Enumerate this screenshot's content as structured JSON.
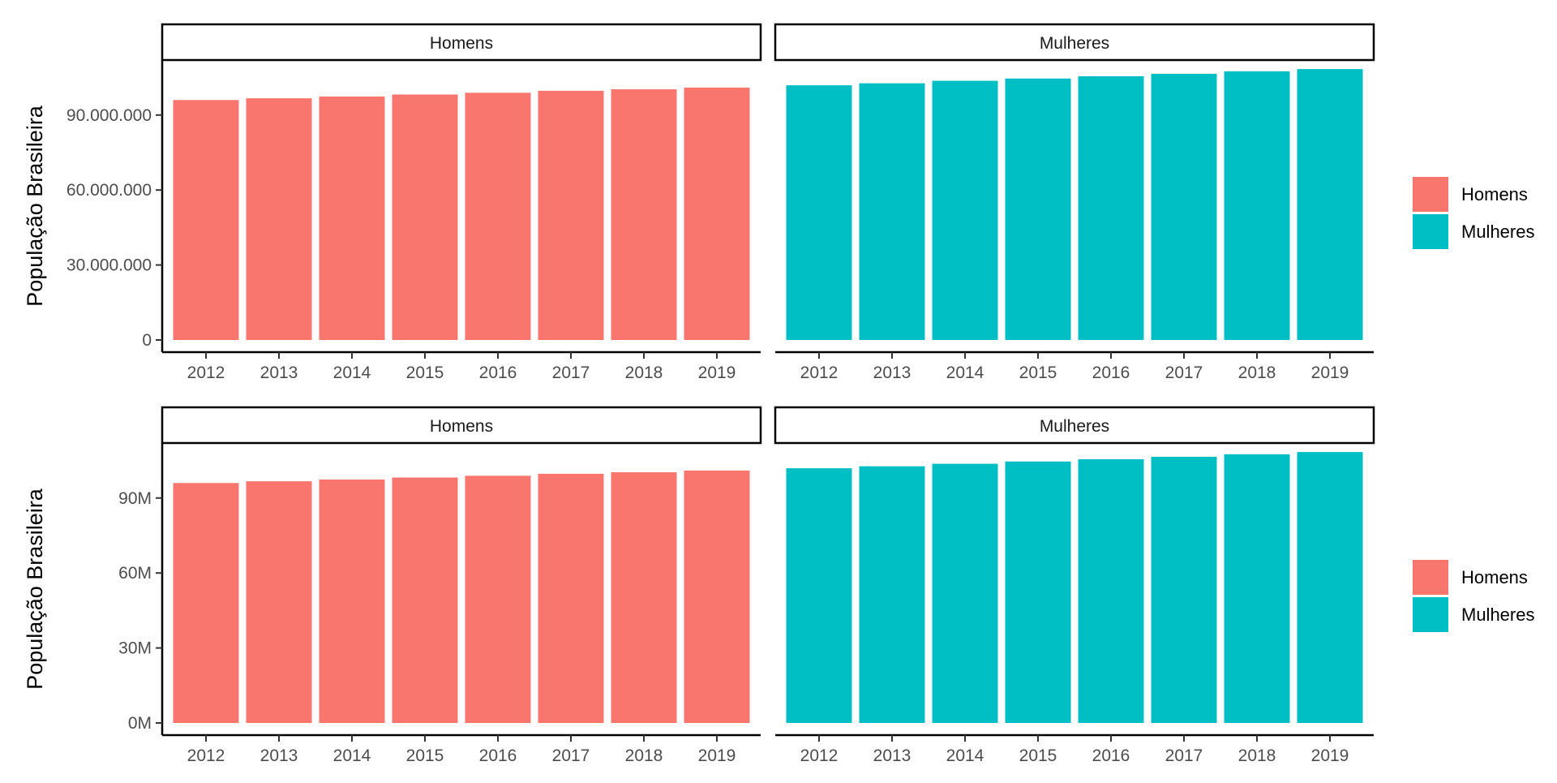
{
  "colors": {
    "homens": "#F8766D",
    "mulheres": "#00BFC4",
    "axis": "#000000",
    "tick_label": "#4D4D4D",
    "background": "#FFFFFF"
  },
  "chart_data": [
    {
      "type": "bar",
      "ylabel": "População Brasileira",
      "ylim": [
        0,
        112000000
      ],
      "yticks": [
        0,
        30000000,
        60000000,
        90000000
      ],
      "ytick_labels": [
        "0",
        "30.000.000",
        "60.000.000",
        "90.000.000"
      ],
      "categories": [
        "2012",
        "2013",
        "2014",
        "2015",
        "2016",
        "2017",
        "2018",
        "2019"
      ],
      "facets": [
        {
          "label": "Homens",
          "color_key": "homens",
          "values": [
            96000000,
            96700000,
            97400000,
            98200000,
            98900000,
            99700000,
            100300000,
            101000000
          ]
        },
        {
          "label": "Mulheres",
          "color_key": "mulheres",
          "values": [
            101900000,
            102700000,
            103700000,
            104600000,
            105500000,
            106500000,
            107500000,
            108400000
          ]
        }
      ],
      "legend": {
        "title": "",
        "entries": [
          {
            "label": "Homens",
            "color_key": "homens"
          },
          {
            "label": "Mulheres",
            "color_key": "mulheres"
          }
        ],
        "position": "right"
      }
    },
    {
      "type": "bar",
      "ylabel": "População Brasileira",
      "ylim": [
        0,
        112000000
      ],
      "yticks": [
        0,
        30000000,
        60000000,
        90000000
      ],
      "ytick_labels": [
        "0M",
        "30M",
        "60M",
        "90M"
      ],
      "categories": [
        "2012",
        "2013",
        "2014",
        "2015",
        "2016",
        "2017",
        "2018",
        "2019"
      ],
      "facets": [
        {
          "label": "Homens",
          "color_key": "homens",
          "values": [
            96000000,
            96700000,
            97400000,
            98200000,
            98900000,
            99700000,
            100300000,
            101000000
          ]
        },
        {
          "label": "Mulheres",
          "color_key": "mulheres",
          "values": [
            101900000,
            102700000,
            103700000,
            104600000,
            105500000,
            106500000,
            107500000,
            108400000
          ]
        }
      ],
      "legend": {
        "title": "",
        "entries": [
          {
            "label": "Homens",
            "color_key": "homens"
          },
          {
            "label": "Mulheres",
            "color_key": "mulheres"
          }
        ],
        "position": "right"
      }
    }
  ]
}
